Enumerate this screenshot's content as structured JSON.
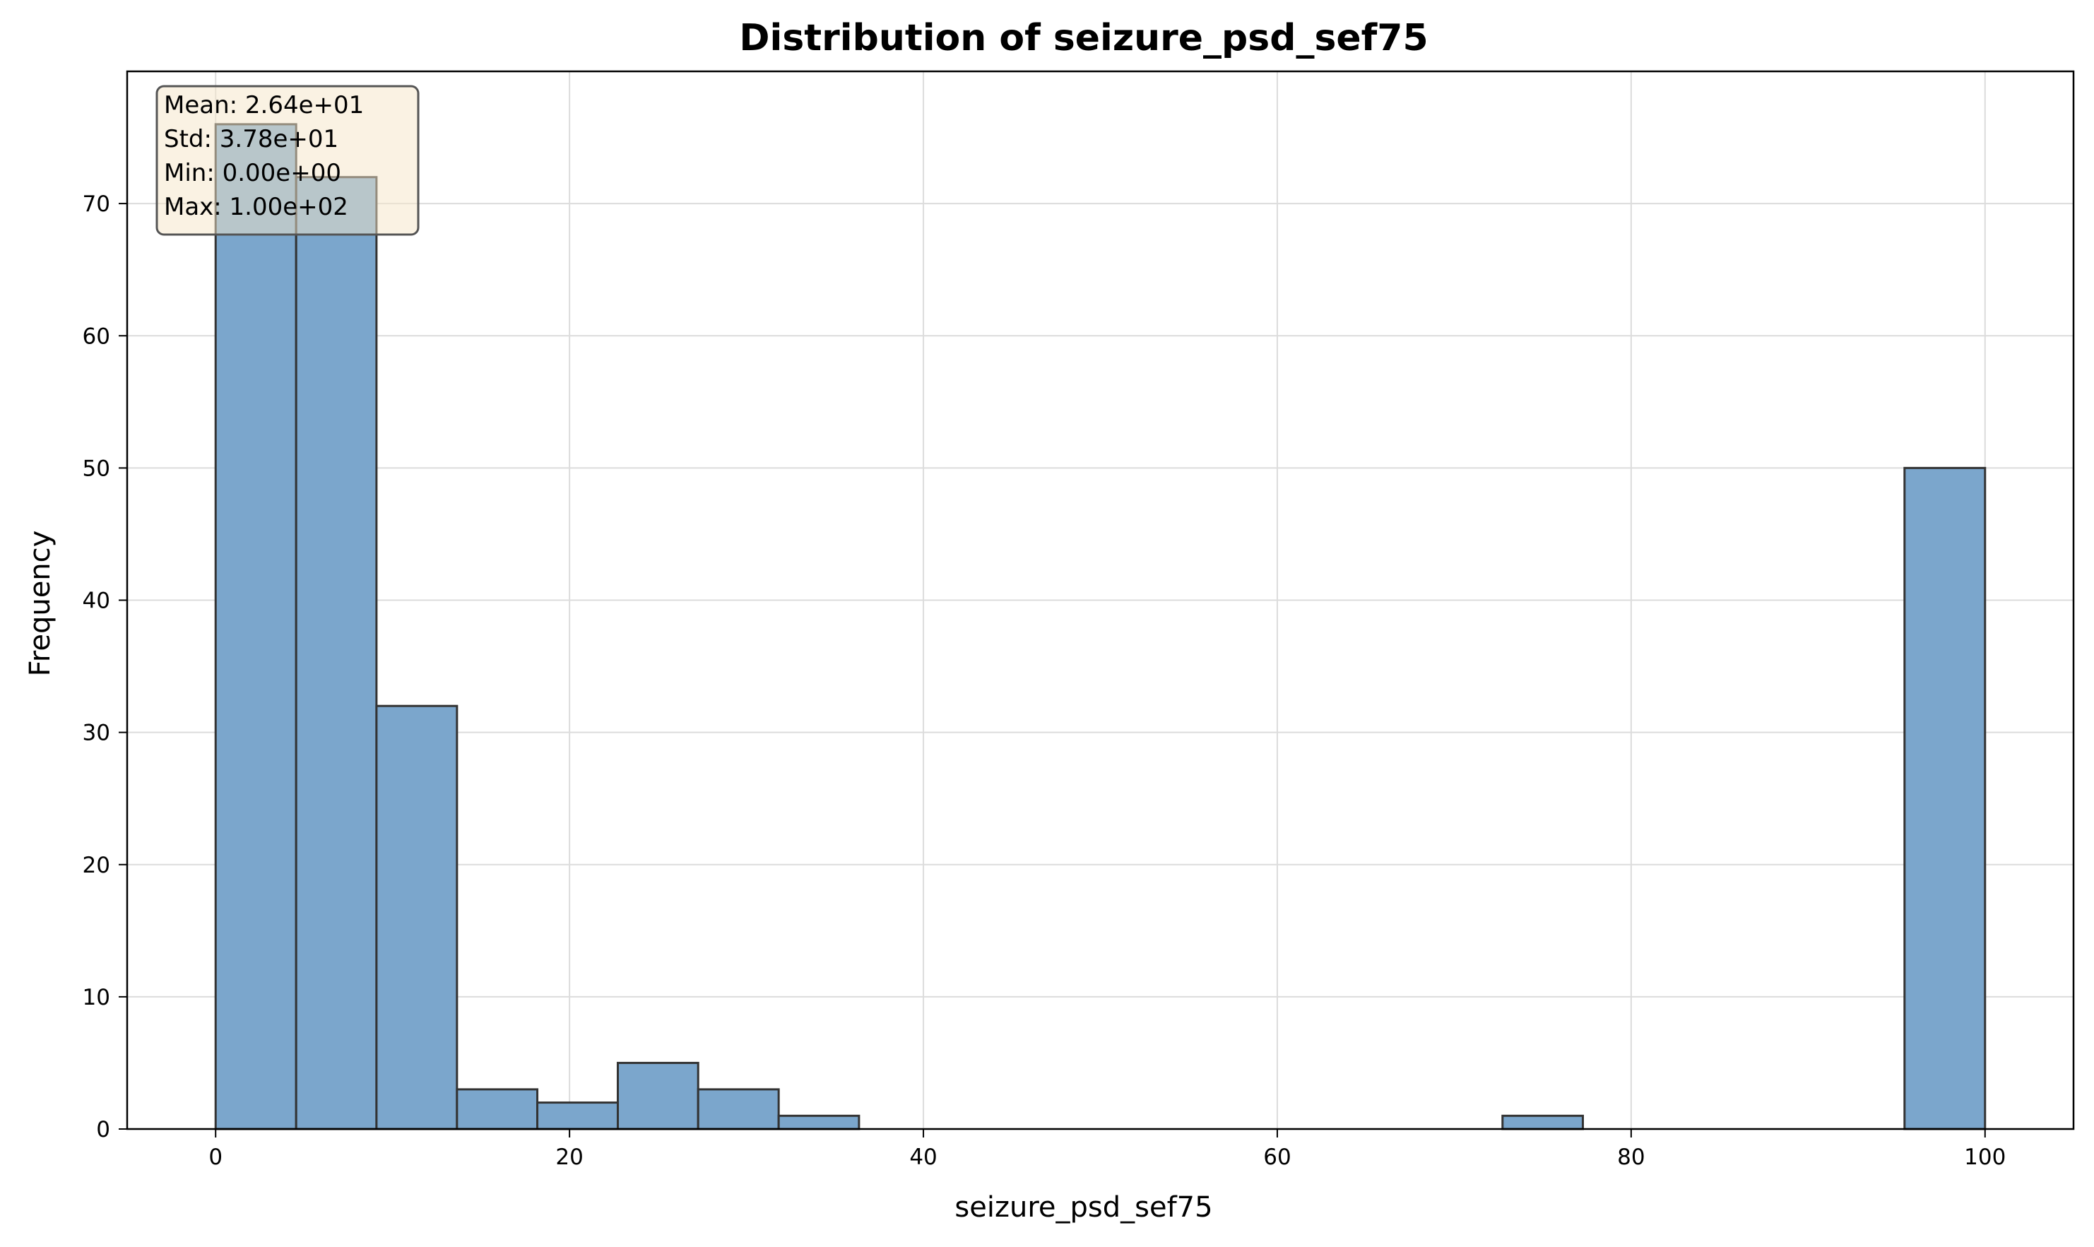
{
  "chart_data": {
    "type": "bar",
    "title": "Distribution of seizure_psd_sef75",
    "xlabel": "seizure_psd_sef75",
    "ylabel": "Frequency",
    "xlim": [
      -5,
      105
    ],
    "ylim": [
      0,
      80
    ],
    "xticks": [
      0,
      20,
      40,
      60,
      80,
      100
    ],
    "yticks": [
      0,
      10,
      20,
      30,
      40,
      50,
      60,
      70
    ],
    "grid": true,
    "bar_color": "#7ba6cc",
    "edge_color": "#333333",
    "bins": [
      {
        "x0": 0.0,
        "x1": 4.55,
        "count": 76
      },
      {
        "x0": 4.55,
        "x1": 9.09,
        "count": 72
      },
      {
        "x0": 9.09,
        "x1": 13.64,
        "count": 32
      },
      {
        "x0": 13.64,
        "x1": 18.18,
        "count": 3
      },
      {
        "x0": 18.18,
        "x1": 22.73,
        "count": 2
      },
      {
        "x0": 22.73,
        "x1": 27.27,
        "count": 5
      },
      {
        "x0": 27.27,
        "x1": 31.82,
        "count": 3
      },
      {
        "x0": 31.82,
        "x1": 36.36,
        "count": 1
      },
      {
        "x0": 36.36,
        "x1": 40.91,
        "count": 0
      },
      {
        "x0": 40.91,
        "x1": 45.45,
        "count": 0
      },
      {
        "x0": 45.45,
        "x1": 50.0,
        "count": 0
      },
      {
        "x0": 50.0,
        "x1": 54.55,
        "count": 0
      },
      {
        "x0": 54.55,
        "x1": 59.09,
        "count": 0
      },
      {
        "x0": 59.09,
        "x1": 63.64,
        "count": 0
      },
      {
        "x0": 63.64,
        "x1": 68.18,
        "count": 0
      },
      {
        "x0": 68.18,
        "x1": 72.73,
        "count": 0
      },
      {
        "x0": 72.73,
        "x1": 77.27,
        "count": 1
      },
      {
        "x0": 77.27,
        "x1": 81.82,
        "count": 0
      },
      {
        "x0": 81.82,
        "x1": 86.36,
        "count": 0
      },
      {
        "x0": 86.36,
        "x1": 90.91,
        "count": 0
      },
      {
        "x0": 90.91,
        "x1": 95.45,
        "count": 0
      },
      {
        "x0": 95.45,
        "x1": 100.0,
        "count": 50
      }
    ],
    "stats_box": {
      "placement": "top-left",
      "lines": [
        "Mean: 2.64e+01",
        "Std: 3.78e+01",
        "Min: 0.00e+00",
        "Max: 1.00e+02"
      ],
      "background": "#f5e6c8",
      "border": "#555555"
    }
  }
}
